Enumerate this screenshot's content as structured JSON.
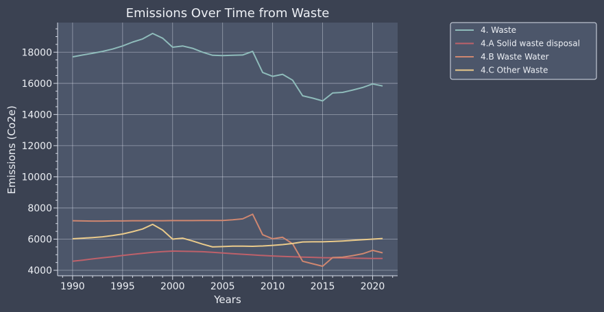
{
  "chart_data": {
    "type": "line",
    "title": "Emissions Over Time from Waste",
    "xlabel": "Years",
    "ylabel": "Emissions (Co2e)",
    "xlim": [
      1988.5,
      2022.5
    ],
    "ylim": [
      3650,
      19900
    ],
    "xticks": [
      1990,
      1995,
      2000,
      2005,
      2010,
      2015,
      2020
    ],
    "yticks": [
      4000,
      6000,
      8000,
      10000,
      12000,
      14000,
      16000,
      18000
    ],
    "grid": true,
    "legend_position": "outside-top-right",
    "x": [
      1990,
      1991,
      1992,
      1993,
      1994,
      1995,
      1996,
      1997,
      1998,
      1999,
      2000,
      2001,
      2002,
      2003,
      2004,
      2005,
      2006,
      2007,
      2008,
      2009,
      2010,
      2011,
      2012,
      2013,
      2014,
      2015,
      2016,
      2017,
      2018,
      2019,
      2020,
      2021
    ],
    "series": [
      {
        "name": "4. Waste",
        "color": "#8fbcbb",
        "values": [
          17700,
          17820,
          17930,
          18050,
          18200,
          18400,
          18650,
          18850,
          19200,
          18900,
          18320,
          18400,
          18250,
          18000,
          17800,
          17780,
          17800,
          17820,
          18050,
          16700,
          16450,
          16580,
          16200,
          15200,
          15050,
          14870,
          15380,
          15420,
          15570,
          15730,
          15960,
          15830
        ]
      },
      {
        "name": "4.A Solid waste disposal",
        "color": "#bf616a",
        "values": [
          4580,
          4650,
          4730,
          4800,
          4870,
          4950,
          5020,
          5090,
          5150,
          5200,
          5230,
          5220,
          5210,
          5190,
          5150,
          5110,
          5070,
          5030,
          4990,
          4950,
          4920,
          4890,
          4870,
          4850,
          4830,
          4810,
          4800,
          4790,
          4780,
          4770,
          4760,
          4760
        ]
      },
      {
        "name": "4.B Waste Water",
        "color": "#d08770",
        "values": [
          7180,
          7170,
          7160,
          7160,
          7170,
          7170,
          7180,
          7180,
          7180,
          7180,
          7190,
          7190,
          7190,
          7200,
          7200,
          7200,
          7240,
          7300,
          7600,
          6280,
          6020,
          6120,
          5700,
          4580,
          4420,
          4260,
          4820,
          4840,
          4940,
          5060,
          5280,
          5120
        ]
      },
      {
        "name": "4.C Other Waste",
        "color": "#ebcb8b",
        "values": [
          6020,
          6060,
          6100,
          6150,
          6230,
          6330,
          6480,
          6650,
          6950,
          6580,
          6000,
          6060,
          5880,
          5680,
          5500,
          5520,
          5550,
          5550,
          5540,
          5560,
          5600,
          5650,
          5720,
          5820,
          5830,
          5830,
          5850,
          5880,
          5920,
          5960,
          6000,
          6040
        ]
      }
    ]
  }
}
